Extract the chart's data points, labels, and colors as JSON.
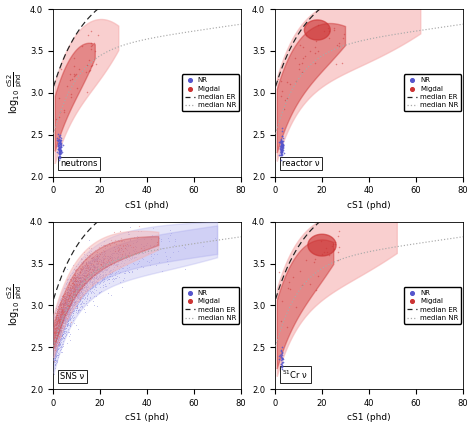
{
  "panels": [
    {
      "label": "neutrons",
      "dense_nr": false
    },
    {
      "label": "reactor ν",
      "dense_nr": false
    },
    {
      "label": "SNS ν",
      "dense_nr": true
    },
    {
      "label": "$^{51}$Cr ν",
      "dense_nr": false
    }
  ],
  "xlim": [
    0,
    80
  ],
  "ylim": [
    2.0,
    4.0
  ],
  "xlabel": "cS1 (phd)",
  "ylabel_left": "log$_{10}$ $\\frac{\\mathrm{cS2}}{\\mathrm{phd}}$",
  "nr_color": "#5555cc",
  "migdal_color_dark": "#cc3333",
  "migdal_color_light": "#f5b0b0",
  "nr_color_light": "#aaaaee",
  "median_er_color": "#222222",
  "median_nr_color": "#aaaaaa",
  "er_params": [
    3.05,
    1.05,
    12,
    0.006
  ],
  "nr_params": [
    2.48,
    1.02,
    10,
    0.004
  ]
}
